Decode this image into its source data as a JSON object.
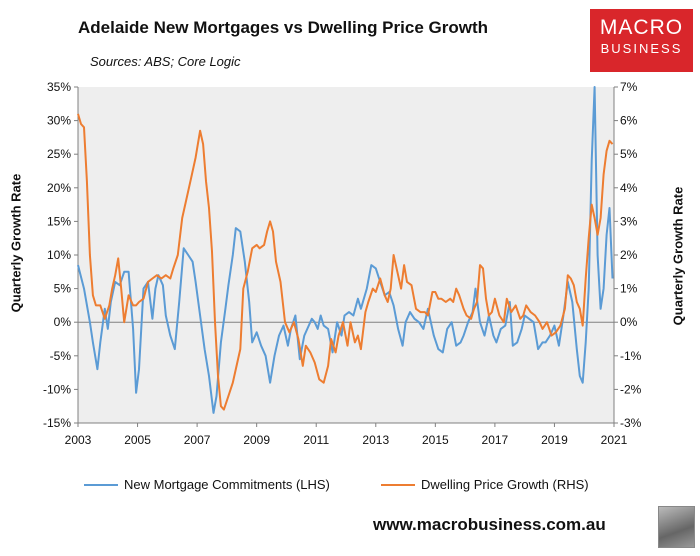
{
  "title": "Adelaide New Mortgages vs Dwelling Price Growth",
  "subtitle": "Sources: ABS; Core Logic",
  "logo": {
    "line1": "MACRO",
    "line2": "BUSINESS"
  },
  "footer_url": "www.macrobusiness.com.au",
  "colors": {
    "mortgage": "#5b9bd5",
    "price": "#ed7d31",
    "plot_bg": "#eeeeee"
  },
  "chart_data": {
    "type": "line",
    "title": "Adelaide New Mortgages vs Dwelling Price Growth",
    "ylabel_left": "Quarterly  Growth Rate",
    "ylabel_right": "Quarterly Growth Rate",
    "xlim": [
      2003,
      2021
    ],
    "ylim_left": [
      -15,
      35
    ],
    "ylim_right": [
      -3,
      7
    ],
    "x_ticks": [
      "2003",
      "2005",
      "2007",
      "2009",
      "2011",
      "2013",
      "2015",
      "2017",
      "2019",
      "2021"
    ],
    "y_left_ticks": [
      "-15%",
      "-10%",
      "-5%",
      "0%",
      "5%",
      "10%",
      "15%",
      "20%",
      "25%",
      "30%",
      "35%"
    ],
    "y_right_ticks": [
      "-3%",
      "-2%",
      "-1%",
      "0%",
      "1%",
      "2%",
      "3%",
      "4%",
      "5%",
      "6%",
      "7%"
    ],
    "series": [
      {
        "name": "New Mortgage Commitments (LHS)",
        "axis": "left",
        "points": [
          [
            2003.0,
            8.5
          ],
          [
            2003.2,
            5
          ],
          [
            2003.4,
            0
          ],
          [
            2003.5,
            -3
          ],
          [
            2003.65,
            -7
          ],
          [
            2003.75,
            -3
          ],
          [
            2003.9,
            2
          ],
          [
            2004.0,
            -1
          ],
          [
            2004.1,
            3
          ],
          [
            2004.25,
            6
          ],
          [
            2004.4,
            5.5
          ],
          [
            2004.55,
            7.5
          ],
          [
            2004.7,
            7.5
          ],
          [
            2004.85,
            -1
          ],
          [
            2004.95,
            -10.5
          ],
          [
            2005.05,
            -7
          ],
          [
            2005.2,
            5
          ],
          [
            2005.35,
            6
          ],
          [
            2005.5,
            0.5
          ],
          [
            2005.6,
            5
          ],
          [
            2005.7,
            7
          ],
          [
            2005.85,
            5.5
          ],
          [
            2005.95,
            1
          ],
          [
            2006.1,
            -2
          ],
          [
            2006.25,
            -4
          ],
          [
            2006.4,
            3
          ],
          [
            2006.55,
            11
          ],
          [
            2006.7,
            10
          ],
          [
            2006.85,
            9
          ],
          [
            2006.95,
            6
          ],
          [
            2007.1,
            1
          ],
          [
            2007.25,
            -4
          ],
          [
            2007.4,
            -8
          ],
          [
            2007.55,
            -13.5
          ],
          [
            2007.65,
            -11
          ],
          [
            2007.8,
            -3
          ],
          [
            2007.95,
            2
          ],
          [
            2008.05,
            5.5
          ],
          [
            2008.2,
            10
          ],
          [
            2008.3,
            14
          ],
          [
            2008.45,
            13.5
          ],
          [
            2008.6,
            9
          ],
          [
            2008.75,
            3
          ],
          [
            2008.85,
            -3
          ],
          [
            2009.0,
            -1.5
          ],
          [
            2009.15,
            -3.5
          ],
          [
            2009.3,
            -5
          ],
          [
            2009.45,
            -9
          ],
          [
            2009.6,
            -5
          ],
          [
            2009.75,
            -2
          ],
          [
            2009.9,
            -0.5
          ],
          [
            2010.05,
            -3.5
          ],
          [
            2010.15,
            -1
          ],
          [
            2010.3,
            1
          ],
          [
            2010.45,
            -5.5
          ],
          [
            2010.6,
            -2
          ],
          [
            2010.7,
            -1
          ],
          [
            2010.85,
            0.5
          ],
          [
            2010.95,
            0
          ],
          [
            2011.05,
            -1
          ],
          [
            2011.15,
            1
          ],
          [
            2011.25,
            -0.5
          ],
          [
            2011.4,
            -1
          ],
          [
            2011.55,
            -4.5
          ],
          [
            2011.7,
            0
          ],
          [
            2011.85,
            -2
          ],
          [
            2011.95,
            1
          ],
          [
            2012.1,
            1.5
          ],
          [
            2012.25,
            1
          ],
          [
            2012.4,
            3.5
          ],
          [
            2012.5,
            2
          ],
          [
            2012.7,
            5
          ],
          [
            2012.85,
            8.5
          ],
          [
            2013.0,
            8
          ],
          [
            2013.15,
            6
          ],
          [
            2013.3,
            4
          ],
          [
            2013.45,
            4.5
          ],
          [
            2013.6,
            2.5
          ],
          [
            2013.75,
            -1
          ],
          [
            2013.9,
            -3.5
          ],
          [
            2014.0,
            0
          ],
          [
            2014.15,
            1.5
          ],
          [
            2014.3,
            0.5
          ],
          [
            2014.45,
            0
          ],
          [
            2014.6,
            -1
          ],
          [
            2014.75,
            2
          ],
          [
            2014.95,
            -2
          ],
          [
            2015.1,
            -4
          ],
          [
            2015.25,
            -4.5
          ],
          [
            2015.4,
            -1
          ],
          [
            2015.55,
            0
          ],
          [
            2015.7,
            -3.5
          ],
          [
            2015.85,
            -3
          ],
          [
            2015.95,
            -2
          ],
          [
            2016.1,
            0
          ],
          [
            2016.25,
            1.5
          ],
          [
            2016.35,
            5
          ],
          [
            2016.5,
            0
          ],
          [
            2016.65,
            -2
          ],
          [
            2016.8,
            1
          ],
          [
            2016.95,
            -2
          ],
          [
            2017.05,
            -3
          ],
          [
            2017.2,
            -1
          ],
          [
            2017.35,
            -0.5
          ],
          [
            2017.5,
            3
          ],
          [
            2017.6,
            -3.5
          ],
          [
            2017.75,
            -3
          ],
          [
            2017.9,
            -1
          ],
          [
            2018.0,
            1
          ],
          [
            2018.15,
            0.5
          ],
          [
            2018.3,
            0
          ],
          [
            2018.45,
            -4
          ],
          [
            2018.6,
            -3
          ],
          [
            2018.7,
            -3
          ],
          [
            2018.85,
            -2
          ],
          [
            2019.0,
            -0.5
          ],
          [
            2019.15,
            -3.5
          ],
          [
            2019.3,
            1
          ],
          [
            2019.45,
            6
          ],
          [
            2019.6,
            3
          ],
          [
            2019.75,
            -4
          ],
          [
            2019.85,
            -8
          ],
          [
            2019.95,
            -9
          ],
          [
            2020.05,
            -3
          ],
          [
            2020.15,
            5
          ],
          [
            2020.25,
            24
          ],
          [
            2020.35,
            35
          ],
          [
            2020.45,
            10
          ],
          [
            2020.55,
            2
          ],
          [
            2020.65,
            5
          ],
          [
            2020.75,
            13
          ],
          [
            2020.85,
            17
          ],
          [
            2020.95,
            6.5
          ]
        ]
      },
      {
        "name": "Dwelling Price Growth (RHS)",
        "axis": "right",
        "points": [
          [
            2003.0,
            6.2
          ],
          [
            2003.1,
            5.9
          ],
          [
            2003.2,
            5.8
          ],
          [
            2003.3,
            4.2
          ],
          [
            2003.4,
            2
          ],
          [
            2003.5,
            0.8
          ],
          [
            2003.6,
            0.5
          ],
          [
            2003.75,
            0.5
          ],
          [
            2003.9,
            0.1
          ],
          [
            2004.05,
            0.5
          ],
          [
            2004.15,
            1
          ],
          [
            2004.25,
            1.4
          ],
          [
            2004.35,
            1.9
          ],
          [
            2004.45,
            1
          ],
          [
            2004.55,
            0
          ],
          [
            2004.7,
            0.8
          ],
          [
            2004.85,
            0.5
          ],
          [
            2004.95,
            0.5
          ],
          [
            2005.05,
            0.6
          ],
          [
            2005.2,
            0.7
          ],
          [
            2005.35,
            1.2
          ],
          [
            2005.5,
            1.3
          ],
          [
            2005.65,
            1.4
          ],
          [
            2005.8,
            1.3
          ],
          [
            2005.95,
            1.4
          ],
          [
            2006.1,
            1.3
          ],
          [
            2006.2,
            1.6
          ],
          [
            2006.35,
            2
          ],
          [
            2006.5,
            3.1
          ],
          [
            2006.65,
            3.7
          ],
          [
            2006.8,
            4.3
          ],
          [
            2006.95,
            4.9
          ],
          [
            2007.1,
            5.7
          ],
          [
            2007.2,
            5.3
          ],
          [
            2007.3,
            4.2
          ],
          [
            2007.4,
            3.4
          ],
          [
            2007.5,
            2.1
          ],
          [
            2007.6,
            0
          ],
          [
            2007.7,
            -1.6
          ],
          [
            2007.8,
            -2.5
          ],
          [
            2007.9,
            -2.6
          ],
          [
            2008.05,
            -2.2
          ],
          [
            2008.2,
            -1.8
          ],
          [
            2008.35,
            -1.2
          ],
          [
            2008.45,
            -0.8
          ],
          [
            2008.55,
            1
          ],
          [
            2008.7,
            1.5
          ],
          [
            2008.85,
            2.2
          ],
          [
            2009.0,
            2.3
          ],
          [
            2009.1,
            2.2
          ],
          [
            2009.25,
            2.3
          ],
          [
            2009.35,
            2.7
          ],
          [
            2009.45,
            3
          ],
          [
            2009.55,
            2.7
          ],
          [
            2009.65,
            1.8
          ],
          [
            2009.8,
            1.2
          ],
          [
            2009.95,
            0
          ],
          [
            2010.1,
            -0.3
          ],
          [
            2010.25,
            0
          ],
          [
            2010.4,
            -0.5
          ],
          [
            2010.55,
            -1.3
          ],
          [
            2010.65,
            -0.7
          ],
          [
            2010.8,
            -0.9
          ],
          [
            2010.95,
            -1.2
          ],
          [
            2011.1,
            -1.7
          ],
          [
            2011.25,
            -1.8
          ],
          [
            2011.4,
            -1.3
          ],
          [
            2011.5,
            -0.5
          ],
          [
            2011.65,
            -0.9
          ],
          [
            2011.75,
            -0.4
          ],
          [
            2011.9,
            0
          ],
          [
            2012.05,
            -0.7
          ],
          [
            2012.15,
            0
          ],
          [
            2012.3,
            -0.6
          ],
          [
            2012.4,
            -0.4
          ],
          [
            2012.5,
            -0.8
          ],
          [
            2012.65,
            0.3
          ],
          [
            2012.75,
            0.6
          ],
          [
            2012.9,
            1
          ],
          [
            2013.0,
            0.9
          ],
          [
            2013.15,
            1.3
          ],
          [
            2013.3,
            0.8
          ],
          [
            2013.4,
            0.6
          ],
          [
            2013.5,
            1
          ],
          [
            2013.6,
            2
          ],
          [
            2013.75,
            1.4
          ],
          [
            2013.85,
            1
          ],
          [
            2013.95,
            1.7
          ],
          [
            2014.05,
            1.2
          ],
          [
            2014.2,
            1.1
          ],
          [
            2014.35,
            0.4
          ],
          [
            2014.5,
            0.3
          ],
          [
            2014.65,
            0.3
          ],
          [
            2014.75,
            0.2
          ],
          [
            2014.9,
            0.9
          ],
          [
            2015.0,
            0.9
          ],
          [
            2015.1,
            0.7
          ],
          [
            2015.2,
            0.7
          ],
          [
            2015.35,
            0.6
          ],
          [
            2015.5,
            0.7
          ],
          [
            2015.6,
            0.6
          ],
          [
            2015.7,
            1
          ],
          [
            2015.8,
            0.8
          ],
          [
            2015.95,
            0.4
          ],
          [
            2016.05,
            0.2
          ],
          [
            2016.2,
            0.1
          ],
          [
            2016.3,
            0.4
          ],
          [
            2016.4,
            0.6
          ],
          [
            2016.5,
            1.7
          ],
          [
            2016.6,
            1.6
          ],
          [
            2016.7,
            0.7
          ],
          [
            2016.8,
            0.2
          ],
          [
            2016.9,
            0.3
          ],
          [
            2017.0,
            0.7
          ],
          [
            2017.15,
            0.2
          ],
          [
            2017.3,
            0
          ],
          [
            2017.4,
            0.7
          ],
          [
            2017.55,
            0.3
          ],
          [
            2017.7,
            0.5
          ],
          [
            2017.85,
            0.1
          ],
          [
            2017.95,
            0.2
          ],
          [
            2018.05,
            0.5
          ],
          [
            2018.2,
            0.3
          ],
          [
            2018.35,
            0.2
          ],
          [
            2018.5,
            0
          ],
          [
            2018.6,
            -0.2
          ],
          [
            2018.75,
            0
          ],
          [
            2018.9,
            -0.4
          ],
          [
            2019.05,
            -0.3
          ],
          [
            2019.2,
            -0.1
          ],
          [
            2019.35,
            0.4
          ],
          [
            2019.45,
            1.4
          ],
          [
            2019.55,
            1.3
          ],
          [
            2019.65,
            1.1
          ],
          [
            2019.75,
            0.6
          ],
          [
            2019.85,
            0.4
          ],
          [
            2019.95,
            -0.1
          ],
          [
            2020.05,
            1.3
          ],
          [
            2020.15,
            2.5
          ],
          [
            2020.25,
            3.5
          ],
          [
            2020.35,
            3.1
          ],
          [
            2020.45,
            2.6
          ],
          [
            2020.55,
            3.1
          ],
          [
            2020.65,
            4.4
          ],
          [
            2020.75,
            5.1
          ],
          [
            2020.85,
            5.4
          ],
          [
            2020.95,
            5.3
          ]
        ]
      }
    ]
  }
}
